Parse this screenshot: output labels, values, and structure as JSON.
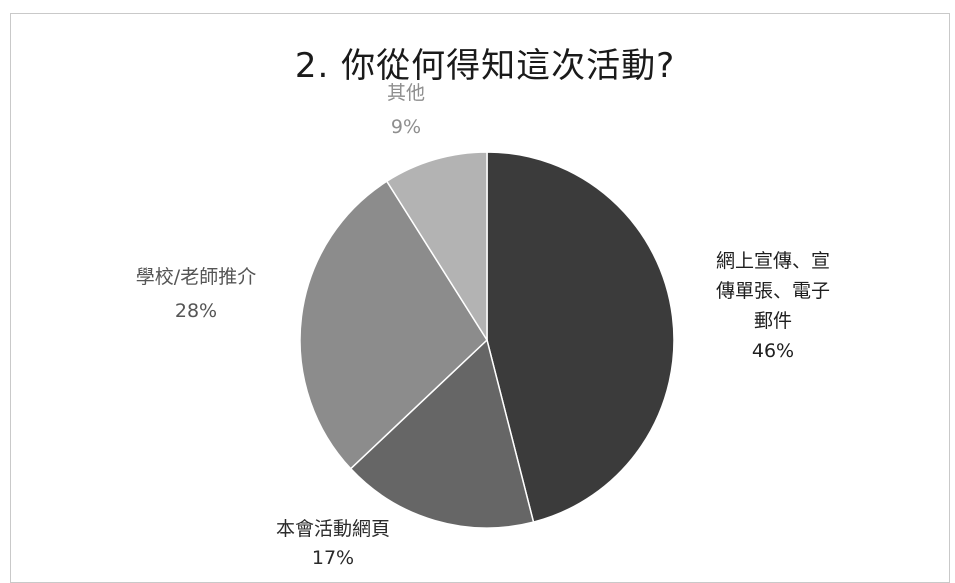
{
  "chart_data": {
    "type": "pie",
    "title": "2. 你從何得知這次活動?",
    "slices": [
      {
        "label_lines": [
          "網上宣傳、宣",
          "傳單張、電子",
          "郵件"
        ],
        "label": "網上宣傳、宣傳單張、電子郵件",
        "value": 46,
        "value_label": "46%",
        "color": "#3b3b3b",
        "label_color": "#1e1e1e"
      },
      {
        "label_lines": [
          "本會活動網頁"
        ],
        "label": "本會活動網頁",
        "value": 17,
        "value_label": "17%",
        "color": "#666666",
        "label_color": "#2a2a2a"
      },
      {
        "label_lines": [
          "學校/老師推介"
        ],
        "label": "學校/老師推介",
        "value": 28,
        "value_label": "28%",
        "color": "#8c8c8c",
        "label_color": "#555555"
      },
      {
        "label_lines": [
          "其他"
        ],
        "label": "其他",
        "value": 9,
        "value_label": "9%",
        "color": "#b3b3b3",
        "label_color": "#8e8e8e"
      }
    ]
  }
}
